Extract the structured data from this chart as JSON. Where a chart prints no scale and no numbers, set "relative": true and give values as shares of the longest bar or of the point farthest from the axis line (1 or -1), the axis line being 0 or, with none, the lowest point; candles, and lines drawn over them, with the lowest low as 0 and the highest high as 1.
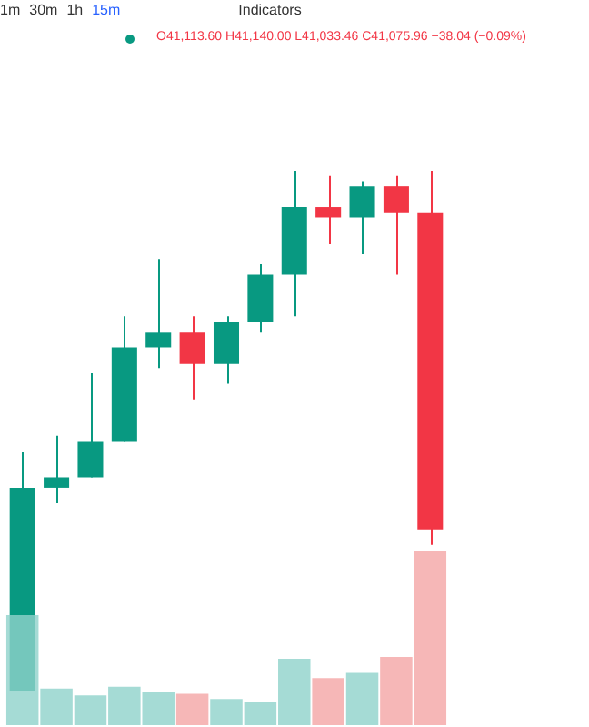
{
  "chart_data": [
    {
      "type": "candlestick",
      "relative": true,
      "categories": [
        null,
        null,
        null,
        null,
        null,
        null,
        null,
        null,
        null,
        null,
        null,
        null,
        null
      ],
      "ohlc": [
        [
          0.0,
          0.46,
          0.0,
          0.39
        ],
        [
          0.39,
          0.49,
          0.36,
          0.41
        ],
        [
          0.41,
          0.61,
          0.41,
          0.48
        ],
        [
          0.48,
          0.72,
          0.48,
          0.66
        ],
        [
          0.66,
          0.83,
          0.62,
          0.69
        ],
        [
          0.69,
          0.72,
          0.56,
          0.63
        ],
        [
          0.63,
          0.72,
          0.59,
          0.71
        ],
        [
          0.71,
          0.82,
          0.69,
          0.8
        ],
        [
          0.8,
          1.0,
          0.72,
          0.93
        ],
        [
          0.93,
          0.99,
          0.86,
          0.91
        ],
        [
          0.91,
          0.98,
          0.84,
          0.97
        ],
        [
          0.97,
          0.99,
          0.8,
          0.92
        ],
        [
          0.92,
          1.0,
          0.28,
          0.31
        ]
      ],
      "annotations": [
        "1m",
        "30m",
        "1h",
        "15m",
        "Indicators",
        "O41,113.60 H41,140.00 L41,033.46 C41,075.96 −38.04 (−0.09%)"
      ]
    },
    {
      "type": "bar",
      "relative": true,
      "categories": [
        null,
        null,
        null,
        null,
        null,
        null,
        null,
        null,
        null,
        null,
        null,
        null,
        null
      ],
      "values": [
        0.63,
        0.21,
        0.17,
        0.22,
        0.19,
        0.18,
        0.15,
        0.13,
        0.38,
        0.27,
        0.3,
        0.39,
        1
      ],
      "colors": [
        "#8fd3cb",
        "#8fd3cb",
        "#8fd3cb",
        "#8fd3cb",
        "#8fd3cb",
        "#f5a6a6",
        "#8fd3cb",
        "#8fd3cb",
        "#8fd3cb",
        "#f5a6a6",
        "#8fd3cb",
        "#f5a6a6",
        "#f5a6a6"
      ]
    }
  ]
}
